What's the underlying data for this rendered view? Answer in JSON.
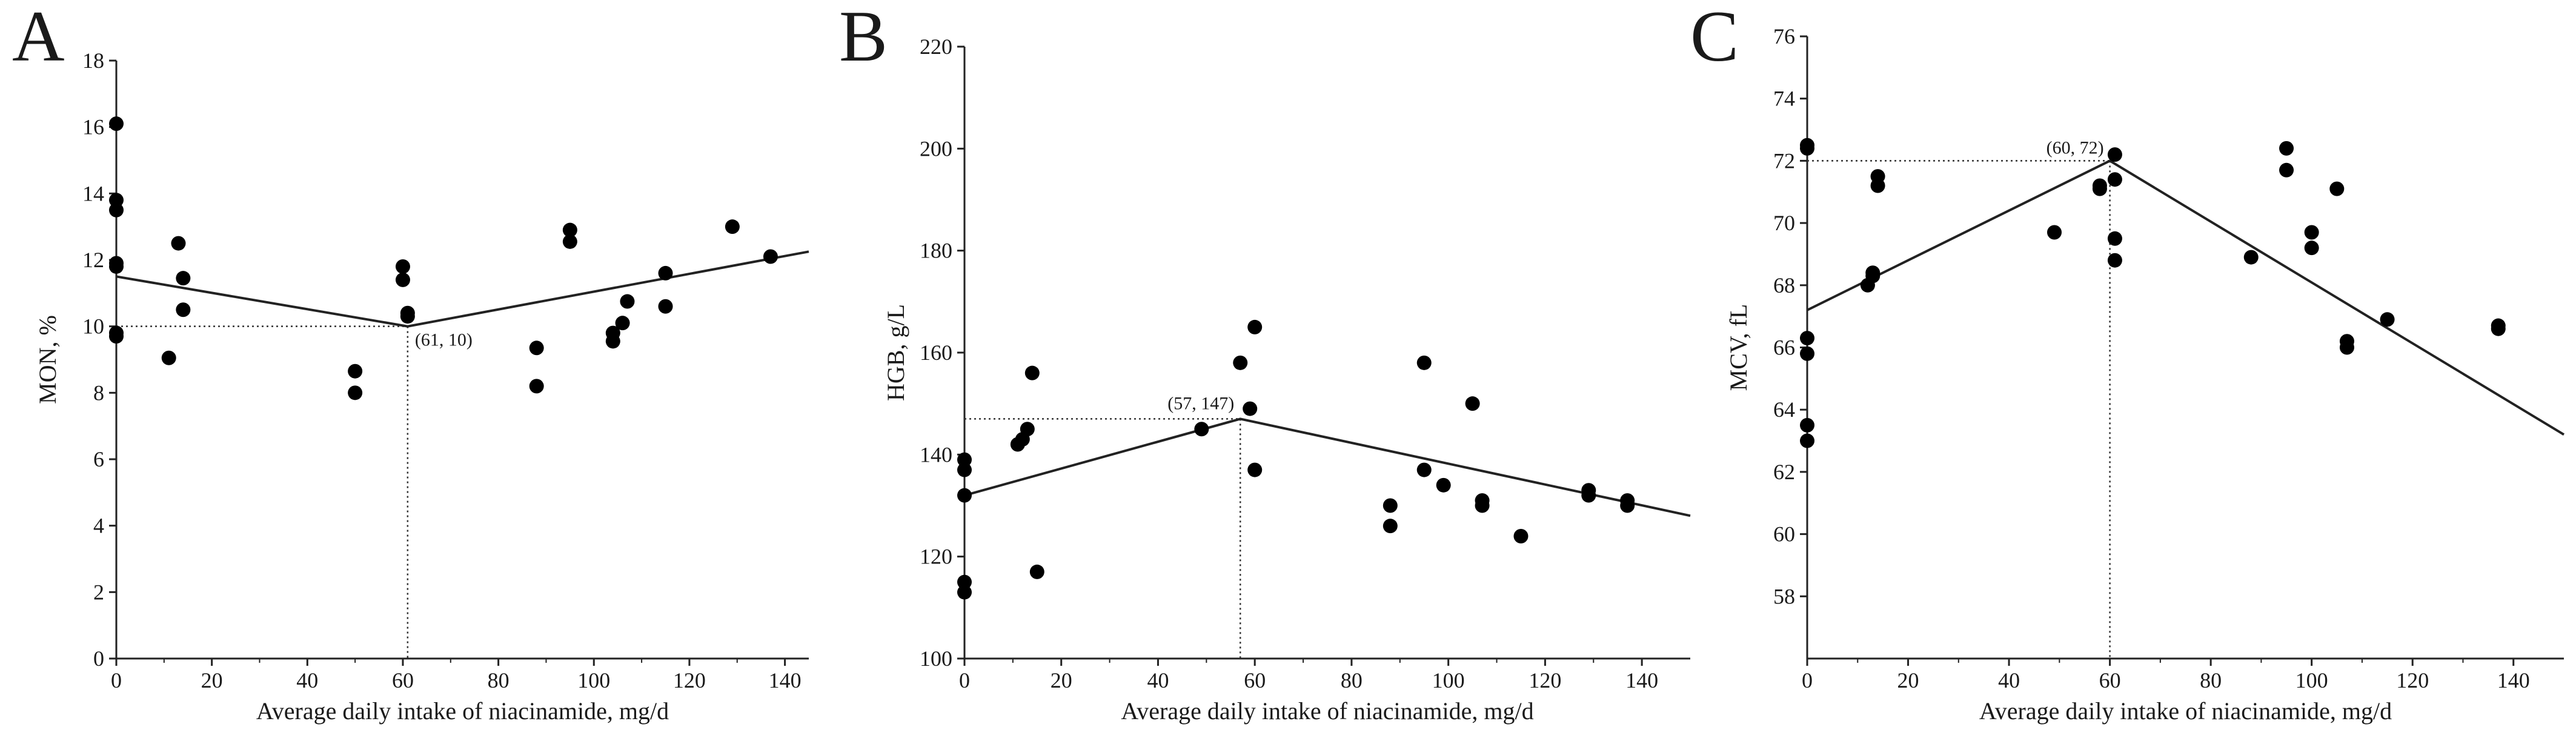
{
  "figure": {
    "panels": [
      "A",
      "B",
      "C"
    ]
  },
  "chart_data": [
    {
      "type": "scatter",
      "panel": "A",
      "xlabel": "Average daily intake of niacinamide, mg/d",
      "ylabel": "MON, %",
      "xlim": [
        0,
        145
      ],
      "ylim": [
        0,
        18
      ],
      "xticks": [
        0,
        20,
        40,
        60,
        80,
        100,
        120,
        140
      ],
      "yticks": [
        0,
        2,
        4,
        6,
        8,
        10,
        12,
        14,
        16,
        18
      ],
      "points": [
        [
          0,
          16.1
        ],
        [
          0,
          13.8
        ],
        [
          0,
          13.5
        ],
        [
          0,
          11.9
        ],
        [
          0,
          11.8
        ],
        [
          0,
          9.8
        ],
        [
          0,
          9.7
        ],
        [
          11,
          9.05
        ],
        [
          13,
          12.5
        ],
        [
          14,
          11.45
        ],
        [
          14,
          10.5
        ],
        [
          50,
          8.65
        ],
        [
          50,
          8.0
        ],
        [
          60,
          11.8
        ],
        [
          60,
          11.4
        ],
        [
          61,
          10.4
        ],
        [
          61,
          10.3
        ],
        [
          88,
          9.35
        ],
        [
          88,
          8.2
        ],
        [
          95,
          12.9
        ],
        [
          95,
          12.55
        ],
        [
          104,
          9.8
        ],
        [
          104,
          9.55
        ],
        [
          106,
          10.1
        ],
        [
          107,
          10.75
        ],
        [
          115,
          11.6
        ],
        [
          115,
          10.6
        ],
        [
          129,
          13.0
        ],
        [
          137,
          12.1
        ]
      ],
      "fit_line": [
        [
          0,
          11.5
        ],
        [
          61,
          10
        ],
        [
          145,
          12.25
        ]
      ],
      "breakpoint": {
        "x": 61,
        "y": 10,
        "label": "(61, 10)"
      }
    },
    {
      "type": "scatter",
      "panel": "B",
      "xlabel": "Average daily intake of niacinamide, mg/d",
      "ylabel": "HGB, g/L",
      "xlim": [
        0,
        150
      ],
      "ylim": [
        100,
        220
      ],
      "xticks": [
        0,
        20,
        40,
        60,
        80,
        100,
        120,
        140
      ],
      "yticks": [
        100,
        120,
        140,
        160,
        180,
        200,
        220
      ],
      "points": [
        [
          0,
          139
        ],
        [
          0,
          137
        ],
        [
          0,
          132
        ],
        [
          0,
          115
        ],
        [
          0,
          113
        ],
        [
          11,
          142
        ],
        [
          12,
          143
        ],
        [
          13,
          145
        ],
        [
          14,
          156
        ],
        [
          15,
          117
        ],
        [
          49,
          145
        ],
        [
          57,
          158
        ],
        [
          59,
          149
        ],
        [
          60,
          165
        ],
        [
          60,
          137
        ],
        [
          88,
          130
        ],
        [
          88,
          126
        ],
        [
          95,
          158
        ],
        [
          95,
          137
        ],
        [
          99,
          134
        ],
        [
          105,
          150
        ],
        [
          107,
          131
        ],
        [
          107,
          130
        ],
        [
          115,
          124
        ],
        [
          129,
          133
        ],
        [
          129,
          132
        ],
        [
          137,
          131
        ],
        [
          137,
          130
        ]
      ],
      "fit_line": [
        [
          0,
          132
        ],
        [
          57,
          147
        ],
        [
          150,
          128
        ]
      ],
      "breakpoint": {
        "x": 57,
        "y": 147,
        "label": "(57, 147)"
      }
    },
    {
      "type": "scatter",
      "panel": "C",
      "xlabel": "Average daily intake of niacinamide, mg/d",
      "ylabel": "MCV, fL",
      "xlim": [
        0,
        150
      ],
      "ylim": [
        56,
        76
      ],
      "xticks": [
        0,
        20,
        40,
        60,
        80,
        100,
        120,
        140
      ],
      "yticks": [
        58,
        60,
        62,
        64,
        66,
        68,
        70,
        72,
        74,
        76
      ],
      "points": [
        [
          0,
          72.5
        ],
        [
          0,
          72.4
        ],
        [
          0,
          66.3
        ],
        [
          0,
          65.8
        ],
        [
          0,
          63.5
        ],
        [
          0,
          63.0
        ],
        [
          12,
          68.0
        ],
        [
          13,
          68.3
        ],
        [
          13,
          68.4
        ],
        [
          14,
          71.5
        ],
        [
          14,
          71.2
        ],
        [
          49,
          69.7
        ],
        [
          58,
          71.1
        ],
        [
          58,
          71.2
        ],
        [
          61,
          72.2
        ],
        [
          61,
          71.4
        ],
        [
          61,
          69.5
        ],
        [
          61,
          68.8
        ],
        [
          88,
          68.9
        ],
        [
          95,
          72.4
        ],
        [
          95,
          71.7
        ],
        [
          100,
          69.7
        ],
        [
          100,
          69.2
        ],
        [
          105,
          71.1
        ],
        [
          107,
          66.2
        ],
        [
          107,
          66.0
        ],
        [
          115,
          66.9
        ],
        [
          137,
          66.7
        ],
        [
          137,
          66.6
        ]
      ],
      "fit_line": [
        [
          0,
          67.2
        ],
        [
          60,
          72
        ],
        [
          150,
          63.2
        ]
      ],
      "breakpoint": {
        "x": 60,
        "y": 72,
        "label": "(60, 72)"
      }
    }
  ]
}
